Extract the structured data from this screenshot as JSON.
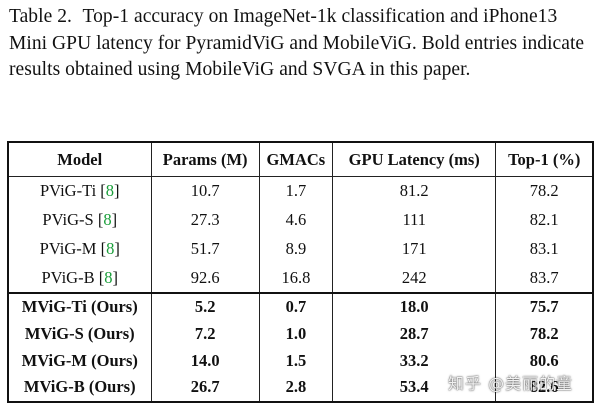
{
  "caption": {
    "label": "Table 2.",
    "text": "Top-1 accuracy on ImageNet-1k classification and iPhone13 Mini GPU latency for PyramidViG and MobileViG. Bold entries indicate results obtained using MobileViG and SVGA in this paper."
  },
  "table": {
    "headers": {
      "model": "Model",
      "params": "Params (M)",
      "gmacs": "GMACs",
      "latency": "GPU Latency (ms)",
      "top1": "Top-1 (%)"
    },
    "baselines": [
      {
        "model": "PViG-Ti",
        "cite_open": "[",
        "cite": "8",
        "cite_close": "]",
        "params": "10.7",
        "gmacs": "1.7",
        "latency": "81.2",
        "top1": "78.2"
      },
      {
        "model": "PViG-S",
        "cite_open": "[",
        "cite": "8",
        "cite_close": "]",
        "params": "27.3",
        "gmacs": "4.6",
        "latency": "111",
        "top1": "82.1"
      },
      {
        "model": "PViG-M",
        "cite_open": "[",
        "cite": "8",
        "cite_close": "]",
        "params": "51.7",
        "gmacs": "8.9",
        "latency": "171",
        "top1": "83.1"
      },
      {
        "model": "PViG-B",
        "cite_open": "[",
        "cite": "8",
        "cite_close": "]",
        "params": "92.6",
        "gmacs": "16.8",
        "latency": "242",
        "top1": "83.7"
      }
    ],
    "ours": [
      {
        "model": "MViG-Ti (Ours)",
        "params": "5.2",
        "gmacs": "0.7",
        "latency": "18.0",
        "top1": "75.7"
      },
      {
        "model": "MViG-S (Ours)",
        "params": "7.2",
        "gmacs": "1.0",
        "latency": "28.7",
        "top1": "78.2"
      },
      {
        "model": "MViG-M (Ours)",
        "params": "14.0",
        "gmacs": "1.5",
        "latency": "33.2",
        "top1": "80.6"
      },
      {
        "model": "MViG-B (Ours)",
        "params": "26.7",
        "gmacs": "2.8",
        "latency": "53.4",
        "top1": "82.6"
      }
    ]
  },
  "watermark": "知乎 @美丽的童",
  "colors": {
    "citation": "#1a9e3a",
    "text": "#111111"
  }
}
